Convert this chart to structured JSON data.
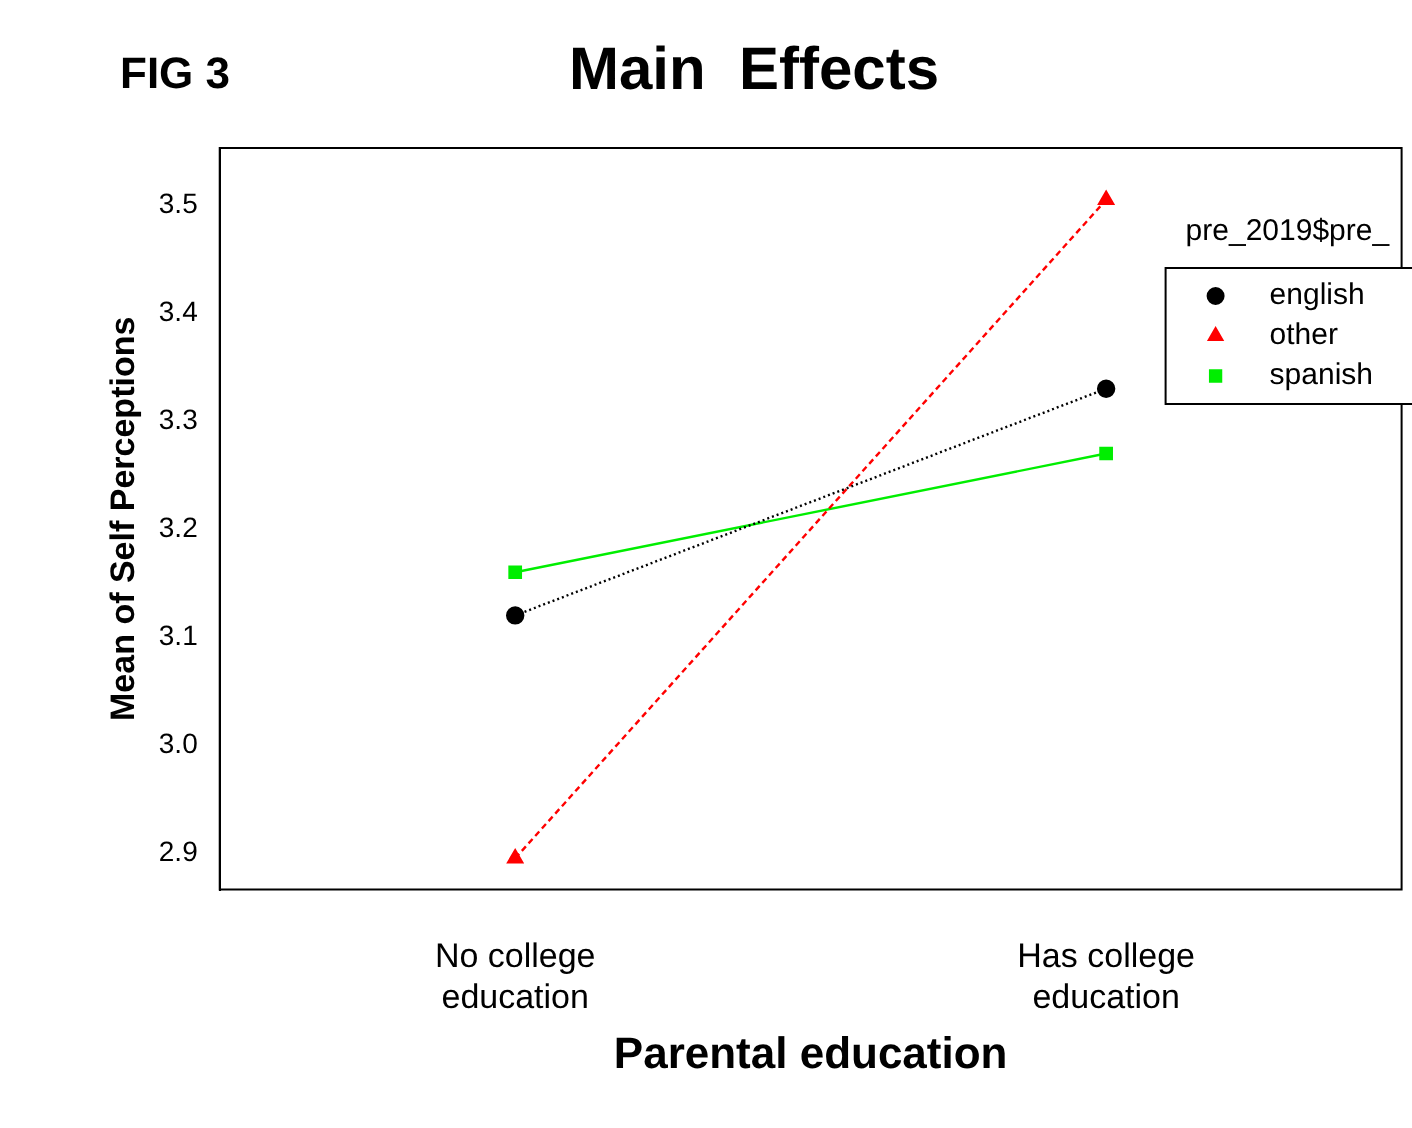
{
  "chart_data": {
    "type": "line",
    "title": "Main  Effects",
    "xlabel": "Parental education",
    "ylabel": "Mean of Self Perceptions",
    "legend_title": "pre_2019$pre_",
    "annotations": [
      "FIG 3"
    ],
    "categories": [
      "No college education",
      "Has college education"
    ],
    "series": [
      {
        "name": "english",
        "color": "#000000",
        "values": [
          3.12,
          3.33
        ],
        "marker": "circle",
        "line_style": "dotted"
      },
      {
        "name": "other",
        "color": "#ff0000",
        "values": [
          2.895,
          3.505
        ],
        "marker": "triangle",
        "line_style": "dashed"
      },
      {
        "name": "spanish",
        "color": "#00ee00",
        "values": [
          3.16,
          3.27
        ],
        "marker": "square",
        "line_style": "solid"
      }
    ],
    "ylim": [
      2.866,
      3.553
    ],
    "yticks": [
      2.9,
      {
        "value": 3,
        "label": "3.0"
      },
      3.1,
      3.2,
      3.3,
      3.4,
      3.5
    ],
    "grid": false,
    "legend": "top right"
  }
}
